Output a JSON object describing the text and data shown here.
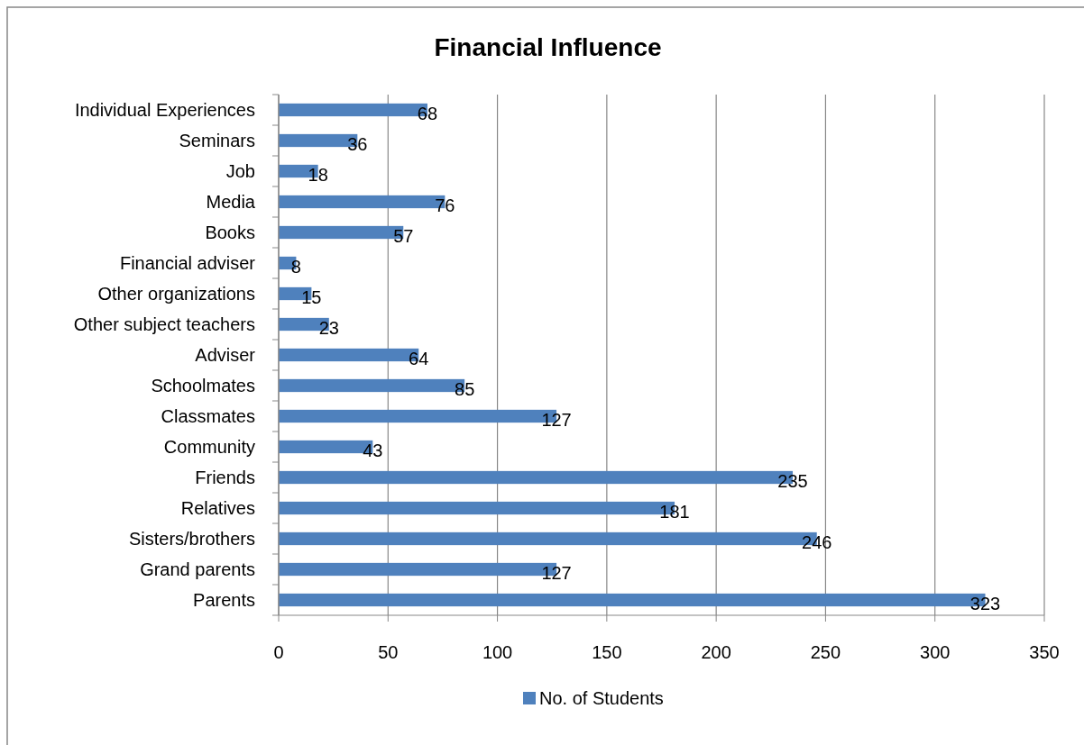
{
  "chart_data": {
    "type": "bar",
    "orientation": "horizontal",
    "title": "Financial Influence",
    "categories": [
      "Individual Experiences",
      "Seminars",
      "Job",
      "Media",
      "Books",
      "Financial adviser",
      "Other organizations",
      "Other subject teachers",
      "Adviser",
      "Schoolmates",
      "Classmates",
      "Community",
      "Friends",
      "Relatives",
      "Sisters/brothers",
      "Grand parents",
      "Parents"
    ],
    "series": [
      {
        "name": "No. of Students",
        "color": "#4f81bd",
        "values": [
          68,
          36,
          18,
          76,
          57,
          8,
          15,
          23,
          64,
          85,
          127,
          43,
          235,
          181,
          246,
          127,
          323
        ]
      }
    ],
    "xlim": [
      0,
      350
    ],
    "xticks": [
      0,
      50,
      100,
      150,
      200,
      250,
      300,
      350
    ],
    "grid": "x",
    "legend": "bottom",
    "data_labels": true
  }
}
